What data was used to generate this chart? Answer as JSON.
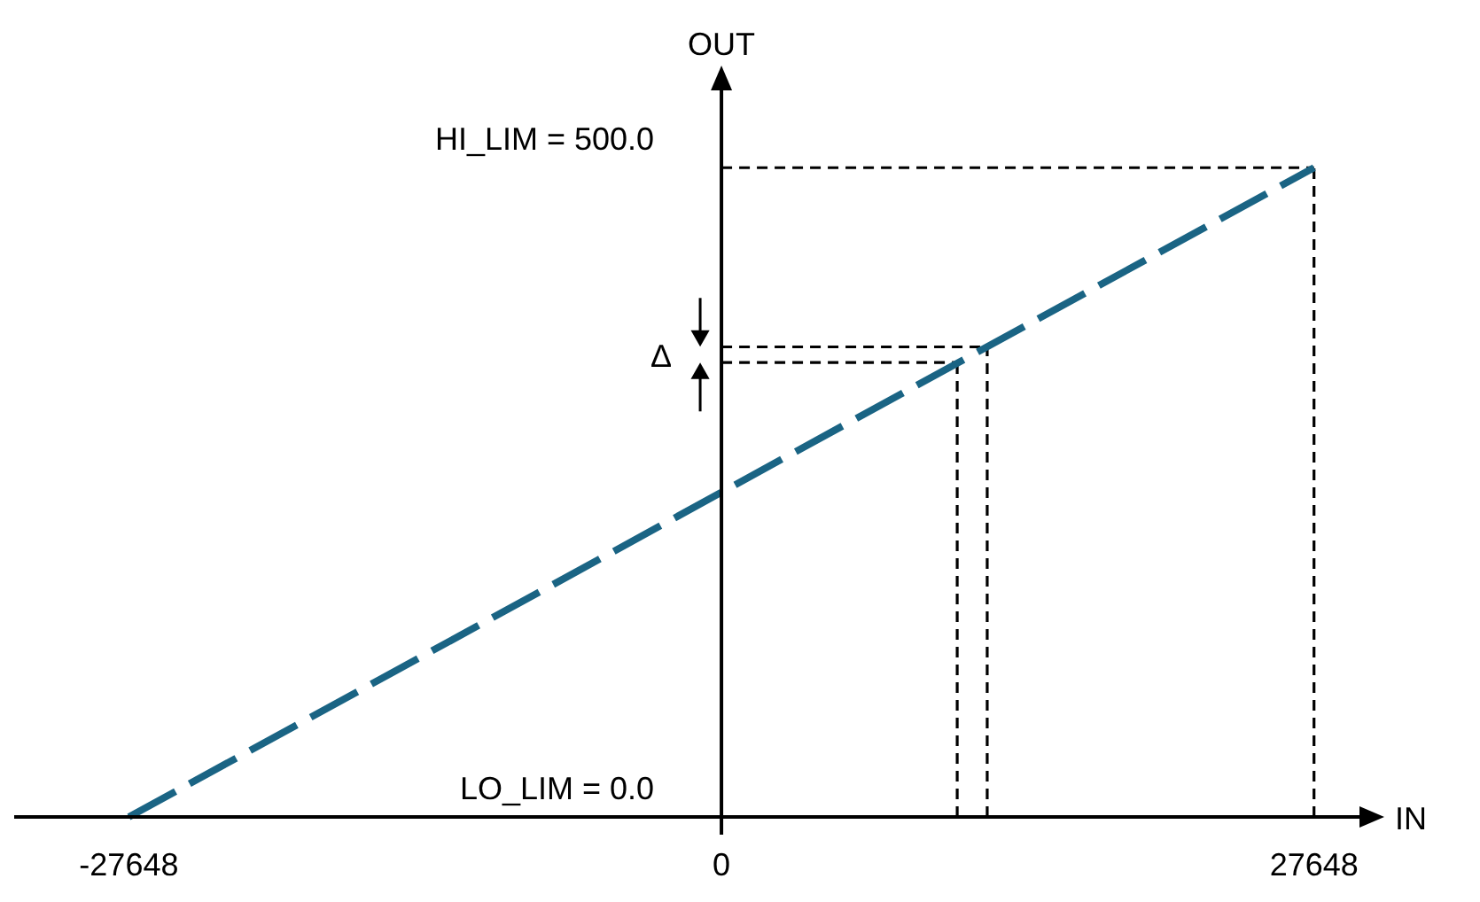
{
  "chart_data": {
    "type": "line",
    "xlabel": "IN",
    "ylabel": "OUT",
    "xlim": [
      -33000,
      30100
    ],
    "ylim": [
      0,
      565
    ],
    "xticks": [
      -27648,
      0,
      27648
    ],
    "yticks": [
      {
        "value": 0,
        "label": "LO_LIM = 0.0"
      },
      {
        "value": 500,
        "label": "HI_LIM = 500.0"
      }
    ],
    "grid": false,
    "marker": "none",
    "line_style": "dashed",
    "x": [
      -27648,
      27648
    ],
    "series": [
      {
        "color": "#1a6484",
        "values": [
          0,
          500
        ]
      }
    ],
    "ref_lines": [
      {
        "axis": "y",
        "value": 500,
        "line_style": "dashed",
        "color": "#000000"
      },
      {
        "axis": "x",
        "value": 27648,
        "line_style": "dashed",
        "color": "#000000"
      },
      {
        "axis": "x",
        "value": 11000,
        "line_style": "dashed",
        "color": "#000000"
      },
      {
        "axis": "x",
        "value": 12400,
        "line_style": "dashed",
        "color": "#000000"
      },
      {
        "axis": "y",
        "value": 350,
        "line_style": "dashed",
        "color": "#000000"
      },
      {
        "axis": "y",
        "value": 362,
        "line_style": "dashed",
        "color": "#000000"
      }
    ],
    "annotations": [
      {
        "text": "Δ",
        "x": 0,
        "y": 356
      }
    ]
  }
}
